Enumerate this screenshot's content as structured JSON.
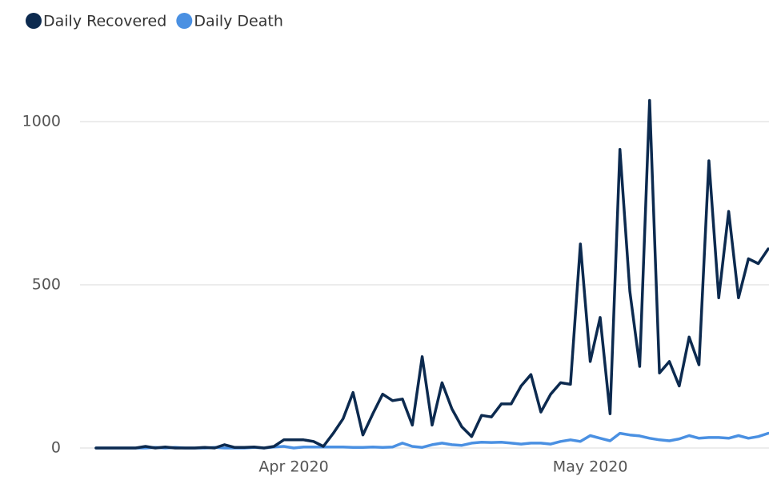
{
  "chart_data": {
    "type": "line",
    "categories": [
      null,
      null,
      null,
      null,
      null,
      null,
      null,
      null,
      null,
      null,
      null,
      null,
      null,
      null,
      null,
      null,
      null,
      null,
      null,
      null,
      "Apr 2020",
      null,
      null,
      null,
      null,
      null,
      null,
      null,
      null,
      null,
      null,
      null,
      null,
      null,
      null,
      null,
      null,
      null,
      null,
      null,
      null,
      null,
      null,
      null,
      null,
      null,
      null,
      null,
      null,
      null,
      "May 2020",
      null,
      null,
      null,
      null,
      null,
      null,
      null,
      null,
      null,
      null,
      null,
      null,
      null,
      null,
      null,
      null,
      null,
      null
    ],
    "series": [
      {
        "name": "Daily Recovered",
        "color": "#0c2a4f",
        "values": [
          0,
          0,
          0,
          0,
          0,
          5,
          0,
          3,
          0,
          0,
          0,
          2,
          0,
          10,
          2,
          2,
          3,
          0,
          5,
          25,
          25,
          25,
          20,
          5,
          45,
          90,
          170,
          40,
          105,
          165,
          145,
          150,
          70,
          280,
          70,
          200,
          120,
          65,
          35,
          100,
          95,
          135,
          135,
          190,
          225,
          110,
          165,
          200,
          195,
          625,
          265,
          400,
          105,
          915,
          480,
          250,
          1065,
          230,
          265,
          190,
          340,
          255,
          880,
          460,
          725,
          460,
          580,
          565,
          610
        ]
      },
      {
        "name": "Daily Death",
        "color": "#4a90e2",
        "values": [
          0,
          0,
          0,
          0,
          0,
          0,
          2,
          0,
          2,
          0,
          0,
          0,
          2,
          0,
          0,
          0,
          2,
          0,
          3,
          5,
          0,
          3,
          3,
          3,
          3,
          3,
          2,
          2,
          3,
          2,
          3,
          15,
          5,
          2,
          10,
          15,
          10,
          8,
          15,
          18,
          17,
          18,
          15,
          12,
          15,
          15,
          12,
          20,
          25,
          20,
          38,
          30,
          22,
          45,
          40,
          37,
          30,
          25,
          22,
          28,
          38,
          30,
          32,
          32,
          30,
          38,
          30,
          35,
          45
        ]
      }
    ],
    "ylim": [
      0,
      1100
    ],
    "yticks": [
      0,
      500,
      1000
    ],
    "grid": true
  }
}
